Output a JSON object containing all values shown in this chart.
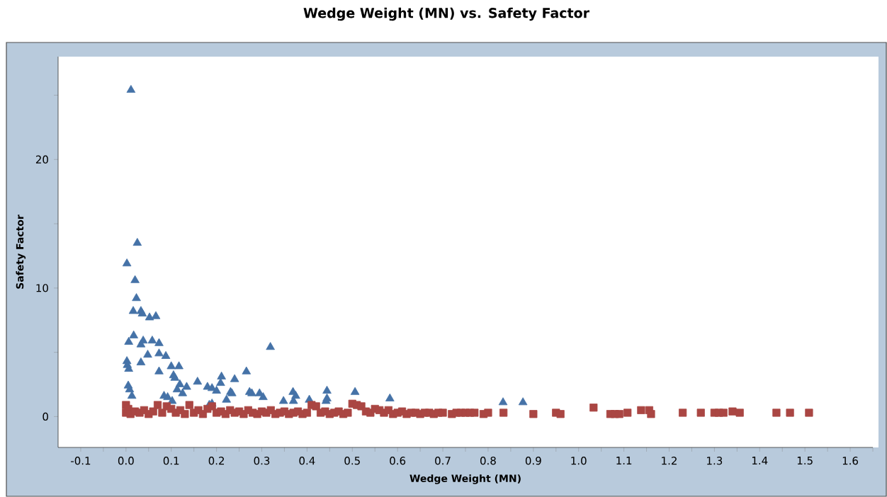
{
  "chart_data": {
    "type": "scatter",
    "title": "Wedge Weight (MN) vs. Safety Factor",
    "xlabel": "Wedge Weight (MN)",
    "ylabel": "Safety Factor",
    "xlim": [
      -0.15,
      1.65
    ],
    "ylim": [
      -2.4,
      28
    ],
    "xticks": [
      {
        "value": -0.1,
        "label": "-0.1"
      },
      {
        "value": -0.05,
        "label": null
      },
      {
        "value": 0,
        "label": "0.0"
      },
      {
        "value": 0.05,
        "label": null
      },
      {
        "value": 0.1,
        "label": "0.1"
      },
      {
        "value": 0.15,
        "label": null
      },
      {
        "value": 0.2,
        "label": "0.2"
      },
      {
        "value": 0.25,
        "label": null
      },
      {
        "value": 0.3,
        "label": "0.3"
      },
      {
        "value": 0.35,
        "label": null
      },
      {
        "value": 0.4,
        "label": "0.4"
      },
      {
        "value": 0.45,
        "label": null
      },
      {
        "value": 0.5,
        "label": "0.5"
      },
      {
        "value": 0.55,
        "label": null
      },
      {
        "value": 0.6,
        "label": "0.6"
      },
      {
        "value": 0.65,
        "label": null
      },
      {
        "value": 0.7,
        "label": "0.7"
      },
      {
        "value": 0.75,
        "label": null
      },
      {
        "value": 0.8,
        "label": "0.8"
      },
      {
        "value": 0.85,
        "label": null
      },
      {
        "value": 0.9,
        "label": "0.9"
      },
      {
        "value": 0.95,
        "label": null
      },
      {
        "value": 1.0,
        "label": "1.0"
      },
      {
        "value": 1.05,
        "label": null
      },
      {
        "value": 1.1,
        "label": "1.1"
      },
      {
        "value": 1.15,
        "label": null
      },
      {
        "value": 1.2,
        "label": "1.2"
      },
      {
        "value": 1.25,
        "label": null
      },
      {
        "value": 1.3,
        "label": "1.3"
      },
      {
        "value": 1.35,
        "label": null
      },
      {
        "value": 1.4,
        "label": "1.4"
      },
      {
        "value": 1.45,
        "label": null
      },
      {
        "value": 1.5,
        "label": "1.5"
      },
      {
        "value": 1.55,
        "label": null
      },
      {
        "value": 1.6,
        "label": "1.6"
      },
      {
        "value": 1.65,
        "label": null
      }
    ],
    "yticks": [
      0,
      {
        "value": 5,
        "label": null
      },
      10,
      {
        "value": 15,
        "label": null
      },
      20,
      {
        "value": 25,
        "label": null
      }
    ],
    "grid": false,
    "series": [
      {
        "color": "#4572a7",
        "marker": "triangle",
        "x": [
          0.011,
          0.002,
          0.025,
          0.02,
          0.023,
          0.016,
          0.033,
          0.036,
          0.052,
          0.066,
          0.017,
          0.006,
          0.038,
          0.033,
          0.058,
          0.073,
          0.048,
          0.033,
          0.073,
          0.088,
          0.002,
          0.003,
          0.006,
          0.073,
          0.1,
          0.117,
          0.105,
          0.108,
          0.005,
          0.008,
          0.013,
          0.084,
          0.092,
          0.119,
          0.113,
          0.134,
          0.125,
          0.158,
          0.18,
          0.19,
          0.211,
          0.209,
          0.2,
          0.24,
          0.266,
          0.231,
          0.234,
          0.222,
          0.273,
          0.278,
          0.295,
          0.303,
          0.319,
          0.348,
          0.369,
          0.375,
          0.405,
          0.444,
          0.444,
          0.442,
          0.506,
          0.583,
          0.833,
          0.877,
          0.37,
          0.19,
          0.184,
          0.102
        ],
        "values": [
          25.4,
          11.9,
          13.5,
          10.6,
          9.2,
          8.2,
          8.2,
          8.0,
          7.7,
          7.8,
          6.3,
          5.8,
          5.9,
          5.6,
          5.9,
          5.7,
          4.8,
          4.2,
          4.9,
          4.7,
          4.3,
          4.0,
          3.7,
          3.5,
          3.9,
          3.9,
          3.2,
          3.0,
          2.4,
          2.1,
          1.6,
          1.6,
          1.5,
          2.5,
          2.1,
          2.3,
          1.8,
          2.7,
          2.3,
          2.2,
          3.1,
          2.6,
          2.0,
          2.9,
          3.5,
          1.9,
          1.8,
          1.3,
          1.9,
          1.8,
          1.8,
          1.5,
          5.4,
          1.2,
          1.9,
          1.6,
          1.3,
          2.0,
          1.4,
          1.2,
          1.9,
          1.4,
          1.1,
          1.1,
          1.2,
          1.0,
          0.9,
          1.2
        ]
      },
      {
        "color": "#aa4643",
        "marker": "square",
        "x": [
          0.0,
          0.0,
          0.005,
          0.01,
          0.02,
          0.03,
          0.04,
          0.05,
          0.06,
          0.07,
          0.08,
          0.09,
          0.1,
          0.11,
          0.12,
          0.13,
          0.14,
          0.15,
          0.16,
          0.17,
          0.18,
          0.19,
          0.2,
          0.21,
          0.22,
          0.23,
          0.24,
          0.25,
          0.26,
          0.27,
          0.28,
          0.29,
          0.3,
          0.31,
          0.32,
          0.33,
          0.34,
          0.35,
          0.36,
          0.37,
          0.38,
          0.39,
          0.4,
          0.41,
          0.42,
          0.43,
          0.44,
          0.45,
          0.46,
          0.47,
          0.48,
          0.49,
          0.5,
          0.51,
          0.52,
          0.53,
          0.54,
          0.55,
          0.56,
          0.57,
          0.58,
          0.59,
          0.6,
          0.61,
          0.62,
          0.63,
          0.64,
          0.65,
          0.66,
          0.67,
          0.68,
          0.69,
          0.7,
          0.72,
          0.73,
          0.74,
          0.75,
          0.76,
          0.77,
          0.79,
          0.8,
          0.834,
          0.9,
          0.95,
          0.96,
          1.033,
          1.07,
          1.08,
          1.09,
          1.108,
          1.138,
          1.156,
          1.16,
          1.23,
          1.27,
          1.3,
          1.31,
          1.32,
          1.34,
          1.356,
          1.437,
          1.467,
          1.509
        ],
        "values": [
          0.9,
          0.3,
          0.6,
          0.2,
          0.4,
          0.3,
          0.5,
          0.2,
          0.4,
          0.9,
          0.3,
          0.8,
          0.6,
          0.3,
          0.5,
          0.2,
          0.9,
          0.3,
          0.5,
          0.2,
          0.6,
          0.8,
          0.3,
          0.4,
          0.2,
          0.5,
          0.3,
          0.4,
          0.2,
          0.5,
          0.3,
          0.2,
          0.4,
          0.3,
          0.5,
          0.2,
          0.3,
          0.4,
          0.2,
          0.3,
          0.4,
          0.2,
          0.3,
          0.9,
          0.8,
          0.3,
          0.4,
          0.2,
          0.3,
          0.4,
          0.2,
          0.3,
          1.0,
          0.9,
          0.8,
          0.4,
          0.3,
          0.6,
          0.5,
          0.3,
          0.5,
          0.2,
          0.3,
          0.4,
          0.2,
          0.3,
          0.3,
          0.2,
          0.3,
          0.3,
          0.2,
          0.3,
          0.3,
          0.2,
          0.3,
          0.3,
          0.3,
          0.3,
          0.3,
          0.2,
          0.3,
          0.3,
          0.2,
          0.3,
          0.2,
          0.7,
          0.2,
          0.2,
          0.2,
          0.3,
          0.5,
          0.5,
          0.2,
          0.3,
          0.3,
          0.3,
          0.3,
          0.3,
          0.4,
          0.3,
          0.3,
          0.3,
          0.3
        ]
      }
    ]
  }
}
